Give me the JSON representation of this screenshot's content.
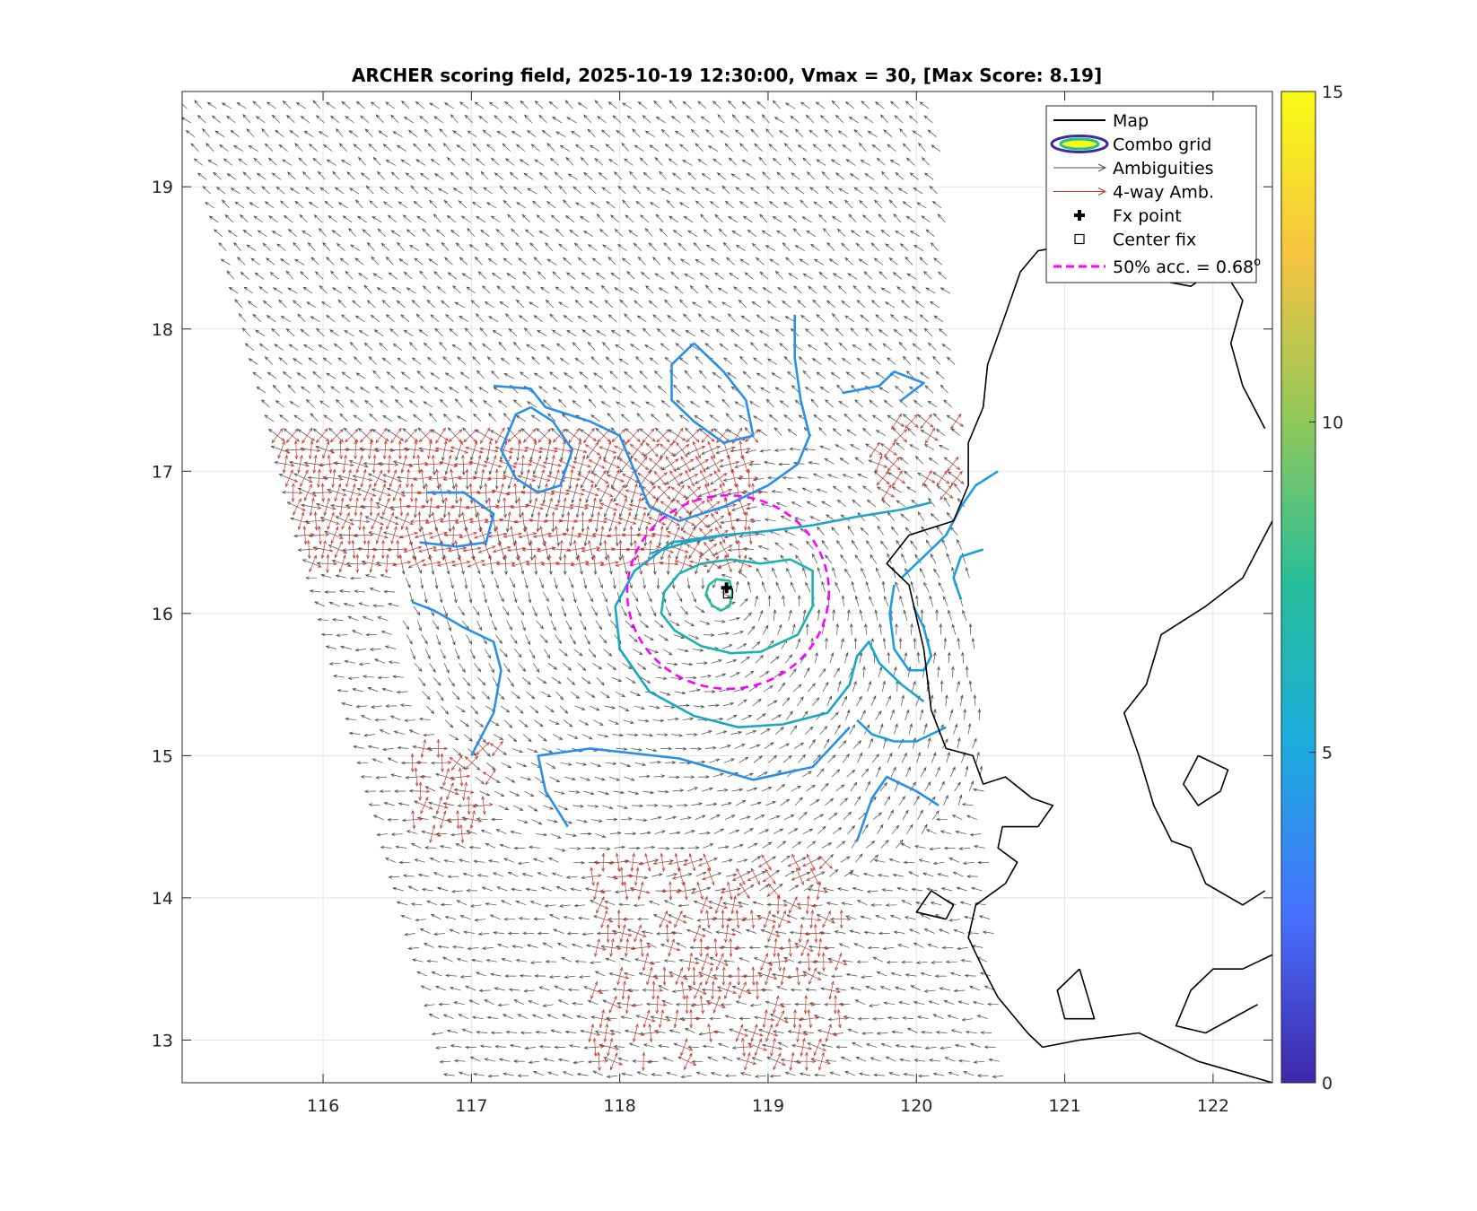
{
  "chart_data": {
    "type": "contour",
    "title": "ARCHER scoring field, 2025-10-19 12:30:00, Vmax = 30, [Max Score: 8.19]",
    "xlabel": "",
    "ylabel": "",
    "xlim": [
      115.05,
      122.4
    ],
    "ylim": [
      12.7,
      19.67
    ],
    "x_ticks": [
      116,
      117,
      118,
      119,
      120,
      121,
      122
    ],
    "y_ticks": [
      13,
      14,
      15,
      16,
      17,
      18,
      19
    ],
    "grid": true,
    "colorbar": {
      "range": [
        0,
        15
      ],
      "ticks": [
        0,
        5,
        10,
        15
      ],
      "colormap": "parula",
      "colors": [
        "#3e26a8",
        "#4770fe",
        "#1caadf",
        "#25be9b",
        "#8fc85a",
        "#f5c340",
        "#f9fb15"
      ]
    },
    "fx_point": {
      "lon": 118.72,
      "lat": 16.18
    },
    "center_fix": {
      "lon": 118.73,
      "lat": 16.14
    },
    "accuracy_circle": {
      "lon": 118.73,
      "lat": 16.15,
      "radius_deg": 0.68,
      "color": "#ff00ff"
    },
    "score_contours": [
      {
        "level": 8,
        "color": "#25be9b",
        "points": [
          [
            118.6,
            16.2
          ],
          [
            118.65,
            16.24
          ],
          [
            118.74,
            16.23
          ],
          [
            118.76,
            16.15
          ],
          [
            118.74,
            16.05
          ],
          [
            118.68,
            16.02
          ],
          [
            118.62,
            16.06
          ],
          [
            118.58,
            16.13
          ],
          [
            118.6,
            16.2
          ]
        ]
      },
      {
        "level": 7.5,
        "color": "#1fb0b2",
        "points": [
          [
            118.4,
            16.28
          ],
          [
            118.55,
            16.35
          ],
          [
            118.75,
            16.38
          ],
          [
            118.95,
            16.35
          ],
          [
            119.15,
            16.38
          ],
          [
            119.3,
            16.3
          ],
          [
            119.3,
            16.05
          ],
          [
            119.2,
            15.85
          ],
          [
            118.95,
            15.73
          ],
          [
            118.75,
            15.72
          ],
          [
            118.55,
            15.77
          ],
          [
            118.37,
            15.88
          ],
          [
            118.28,
            16.0
          ],
          [
            118.3,
            16.15
          ],
          [
            118.4,
            16.28
          ]
        ]
      },
      {
        "level": 7,
        "color": "#1ca6c6",
        "points": [
          [
            118.2,
            16.42
          ],
          [
            118.45,
            16.5
          ],
          [
            118.7,
            16.55
          ],
          [
            119.0,
            16.58
          ],
          [
            119.3,
            16.62
          ],
          [
            119.6,
            16.68
          ],
          [
            119.9,
            16.73
          ],
          [
            120.1,
            16.78
          ]
        ]
      },
      {
        "level": 7,
        "color": "#1ca6c6",
        "points": [
          [
            118.7,
            16.55
          ],
          [
            118.35,
            16.5
          ],
          [
            118.1,
            16.3
          ],
          [
            117.97,
            16.05
          ],
          [
            118.0,
            15.75
          ],
          [
            118.2,
            15.45
          ],
          [
            118.5,
            15.28
          ],
          [
            118.8,
            15.2
          ],
          [
            119.1,
            15.22
          ],
          [
            119.4,
            15.3
          ],
          [
            119.55,
            15.5
          ],
          [
            119.6,
            15.7
          ],
          [
            119.68,
            15.8
          ],
          [
            119.75,
            15.65
          ],
          [
            119.9,
            15.5
          ],
          [
            120.05,
            15.38
          ]
        ]
      },
      {
        "level": 6.5,
        "color": "#1c9de0",
        "points": [
          [
            119.6,
            15.25
          ],
          [
            119.7,
            15.15
          ],
          [
            119.85,
            15.1
          ],
          [
            120.0,
            15.1
          ],
          [
            120.2,
            15.2
          ]
        ]
      },
      {
        "level": 6.5,
        "color": "#1c9de0",
        "points": [
          [
            119.85,
            16.2
          ],
          [
            119.82,
            16.0
          ],
          [
            119.85,
            15.75
          ],
          [
            119.95,
            15.6
          ],
          [
            120.05,
            15.6
          ],
          [
            120.1,
            15.7
          ],
          [
            120.05,
            15.9
          ],
          [
            119.98,
            16.05
          ]
        ]
      },
      {
        "level": 6.5,
        "color": "#1c9de0",
        "points": [
          [
            120.3,
            16.1
          ],
          [
            120.25,
            16.25
          ],
          [
            120.3,
            16.4
          ],
          [
            120.45,
            16.45
          ]
        ]
      },
      {
        "level": 6.5,
        "color": "#1c9de0",
        "points": [
          [
            119.9,
            16.25
          ],
          [
            120.05,
            16.4
          ],
          [
            120.2,
            16.55
          ],
          [
            120.3,
            16.75
          ],
          [
            120.4,
            16.9
          ],
          [
            120.55,
            17.0
          ]
        ]
      },
      {
        "level": 6,
        "color": "#2a8fe8",
        "points": [
          [
            117.0,
            15.0
          ],
          [
            117.15,
            15.3
          ],
          [
            117.2,
            15.6
          ],
          [
            117.15,
            15.8
          ],
          [
            116.95,
            15.9
          ],
          [
            116.75,
            16.02
          ],
          [
            116.6,
            16.08
          ]
        ]
      },
      {
        "level": 6,
        "color": "#2a8fe8",
        "points": [
          [
            117.65,
            14.5
          ],
          [
            117.5,
            14.75
          ],
          [
            117.45,
            15.0
          ],
          [
            117.8,
            15.05
          ],
          [
            118.4,
            14.98
          ],
          [
            118.9,
            14.83
          ],
          [
            119.3,
            14.92
          ],
          [
            119.55,
            15.2
          ]
        ]
      },
      {
        "level": 6,
        "color": "#2a8fe8",
        "points": [
          [
            116.7,
            16.85
          ],
          [
            116.95,
            16.85
          ],
          [
            117.15,
            16.7
          ],
          [
            117.1,
            16.5
          ],
          [
            116.9,
            16.47
          ],
          [
            116.65,
            16.5
          ]
        ]
      },
      {
        "level": 6,
        "color": "#2a8fe8",
        "points": [
          [
            117.4,
            17.45
          ],
          [
            117.55,
            17.35
          ],
          [
            117.68,
            17.15
          ],
          [
            117.6,
            16.9
          ],
          [
            117.45,
            16.85
          ],
          [
            117.3,
            16.95
          ],
          [
            117.2,
            17.15
          ],
          [
            117.3,
            17.4
          ],
          [
            117.4,
            17.45
          ]
        ]
      },
      {
        "level": 6,
        "color": "#2a8fe8",
        "points": [
          [
            117.15,
            17.6
          ],
          [
            117.4,
            17.58
          ],
          [
            117.5,
            17.45
          ],
          [
            117.8,
            17.35
          ],
          [
            118.0,
            17.25
          ],
          [
            118.08,
            17.05
          ],
          [
            118.2,
            16.75
          ],
          [
            118.4,
            16.65
          ],
          [
            118.7,
            16.75
          ],
          [
            119.0,
            16.9
          ],
          [
            119.2,
            17.05
          ],
          [
            119.28,
            17.25
          ],
          [
            119.22,
            17.5
          ],
          [
            119.18,
            17.8
          ],
          [
            119.18,
            18.1
          ]
        ]
      },
      {
        "level": 6,
        "color": "#2a8fe8",
        "points": [
          [
            118.5,
            17.9
          ],
          [
            118.35,
            17.75
          ],
          [
            118.35,
            17.5
          ],
          [
            118.5,
            17.35
          ],
          [
            118.7,
            17.2
          ],
          [
            118.9,
            17.25
          ],
          [
            118.85,
            17.5
          ],
          [
            118.7,
            17.7
          ],
          [
            118.5,
            17.9
          ]
        ]
      },
      {
        "level": 6,
        "color": "#2a8fe8",
        "points": [
          [
            119.5,
            17.55
          ],
          [
            119.75,
            17.6
          ],
          [
            119.85,
            17.7
          ],
          [
            120.05,
            17.62
          ],
          [
            119.9,
            17.5
          ]
        ]
      },
      {
        "level": 6,
        "color": "#2a8fe8",
        "points": [
          [
            119.6,
            14.4
          ],
          [
            119.7,
            14.7
          ],
          [
            119.8,
            14.85
          ],
          [
            120.0,
            14.75
          ],
          [
            120.15,
            14.65
          ]
        ]
      }
    ],
    "coastlines": [
      [
        [
          122.4,
          12.7
        ],
        [
          121.9,
          12.85
        ],
        [
          121.5,
          13.05
        ],
        [
          121.1,
          13.0
        ],
        [
          120.85,
          12.95
        ],
        [
          120.75,
          13.05
        ],
        [
          120.55,
          13.3
        ],
        [
          120.45,
          13.5
        ],
        [
          120.35,
          13.72
        ],
        [
          120.4,
          13.95
        ],
        [
          120.6,
          14.1
        ],
        [
          120.68,
          14.25
        ],
        [
          120.55,
          14.35
        ],
        [
          120.58,
          14.5
        ],
        [
          120.82,
          14.5
        ],
        [
          120.92,
          14.65
        ],
        [
          120.78,
          14.7
        ],
        [
          120.6,
          14.85
        ],
        [
          120.45,
          14.8
        ],
        [
          120.38,
          15.0
        ],
        [
          120.2,
          15.05
        ],
        [
          120.1,
          15.32
        ],
        [
          120.05,
          15.75
        ],
        [
          119.95,
          16.2
        ],
        [
          119.8,
          16.35
        ],
        [
          119.95,
          16.55
        ],
        [
          120.25,
          16.65
        ],
        [
          120.35,
          16.9
        ],
        [
          120.35,
          17.2
        ],
        [
          120.45,
          17.45
        ],
        [
          120.48,
          17.75
        ],
        [
          120.6,
          18.1
        ],
        [
          120.7,
          18.4
        ],
        [
          120.82,
          18.55
        ],
        [
          121.1,
          18.6
        ],
        [
          121.45,
          18.62
        ],
        [
          121.6,
          18.35
        ],
        [
          121.85,
          18.3
        ],
        [
          122.05,
          18.45
        ],
        [
          122.2,
          18.2
        ],
        [
          122.12,
          17.9
        ],
        [
          122.2,
          17.6
        ],
        [
          122.35,
          17.3
        ]
      ],
      [
        [
          122.4,
          16.65
        ],
        [
          122.2,
          16.25
        ],
        [
          121.95,
          16.05
        ],
        [
          121.65,
          15.85
        ],
        [
          121.55,
          15.5
        ],
        [
          121.4,
          15.3
        ],
        [
          121.5,
          15.0
        ],
        [
          121.6,
          14.65
        ],
        [
          121.72,
          14.4
        ],
        [
          121.85,
          14.35
        ],
        [
          121.95,
          14.1
        ],
        [
          122.2,
          13.95
        ],
        [
          122.35,
          14.05
        ]
      ],
      [
        [
          122.4,
          13.6
        ],
        [
          122.2,
          13.5
        ],
        [
          122.0,
          13.5
        ],
        [
          121.85,
          13.35
        ],
        [
          121.75,
          13.1
        ],
        [
          121.95,
          13.05
        ],
        [
          122.3,
          13.25
        ]
      ],
      [
        [
          120.2,
          13.85
        ],
        [
          120.0,
          13.9
        ],
        [
          120.1,
          14.05
        ],
        [
          120.25,
          13.95
        ],
        [
          120.2,
          13.85
        ]
      ],
      [
        [
          121.9,
          15.0
        ],
        [
          121.8,
          14.8
        ],
        [
          121.9,
          14.65
        ],
        [
          122.05,
          14.75
        ],
        [
          122.1,
          14.9
        ],
        [
          121.9,
          15.0
        ]
      ],
      [
        [
          121.1,
          13.5
        ],
        [
          120.95,
          13.35
        ],
        [
          121.0,
          13.15
        ],
        [
          121.2,
          13.15
        ],
        [
          121.1,
          13.5
        ]
      ]
    ]
  },
  "legend": {
    "items": [
      {
        "label": "Map",
        "symbol": "line",
        "color": "#000000"
      },
      {
        "label": "Combo grid",
        "symbol": "ellipse",
        "color": "#3b2d9a"
      },
      {
        "label": "Ambiguities",
        "symbol": "arrow",
        "color": "#555555"
      },
      {
        "label": "4-way Amb.",
        "symbol": "arrow",
        "color": "#c0392b"
      },
      {
        "label": "Fx point",
        "symbol": "plus",
        "color": "#000000"
      },
      {
        "label": "Center fix",
        "symbol": "square",
        "color": "#000000"
      },
      {
        "label": "50% acc. = 0.68",
        "symbol": "dashed",
        "color": "#ff00ff",
        "superscript": "o"
      }
    ]
  }
}
